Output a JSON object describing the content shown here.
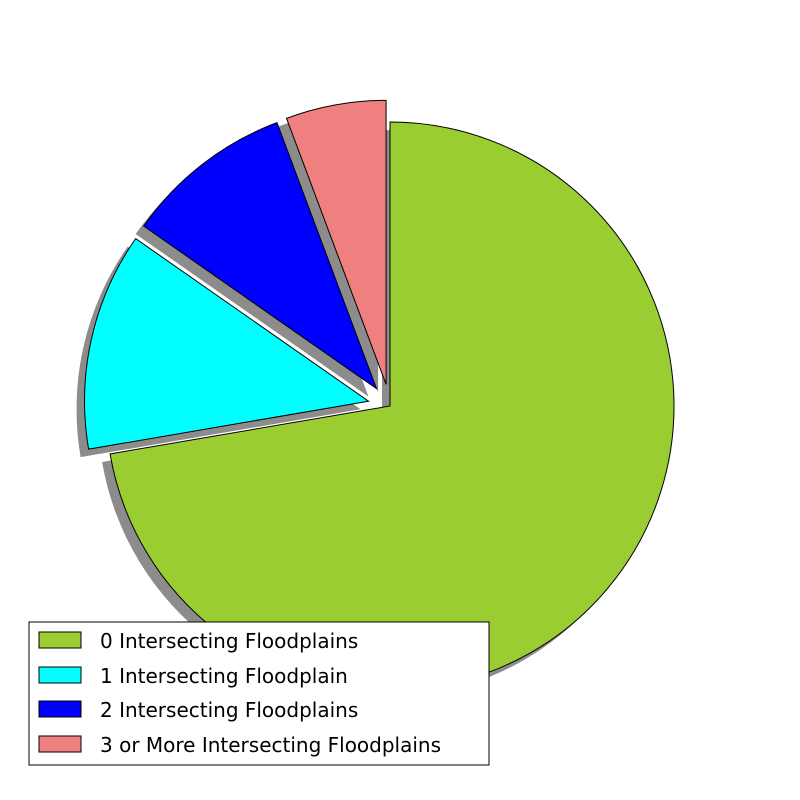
{
  "chart_data": {
    "type": "pie",
    "title": "",
    "start_angle_deg": 90,
    "direction": "clockwise",
    "shadow": true,
    "legend_position": "lower-left",
    "slices": [
      {
        "label": "0 Intersecting Floodplains",
        "value": 72.3,
        "color": "#9acd32",
        "exploded": false
      },
      {
        "label": "1 Intersecting Floodplain",
        "value": 12.4,
        "color": "#00ffff",
        "exploded": true
      },
      {
        "label": "2 Intersecting Floodplains",
        "value": 9.6,
        "color": "#0000ff",
        "exploded": true
      },
      {
        "label": "3 or More Intersecting Floodplains",
        "value": 5.7,
        "color": "#f08080",
        "exploded": true
      }
    ]
  }
}
